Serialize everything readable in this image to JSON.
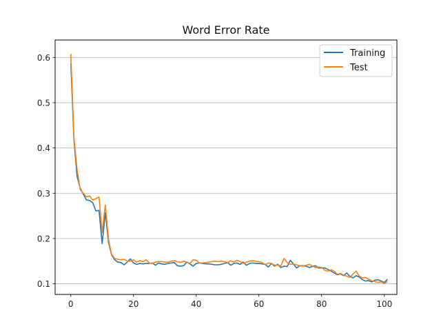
{
  "chart_data": {
    "type": "line",
    "title": "Word Error Rate",
    "xlabel": "",
    "ylabel": "",
    "xlim": [
      -5,
      104
    ],
    "ylim": [
      0.0765,
      0.6385
    ],
    "xticks": [
      0,
      20,
      40,
      60,
      80,
      100
    ],
    "yticks": [
      0.1,
      0.2,
      0.3,
      0.4,
      0.5,
      0.6
    ],
    "grid": {
      "y": true,
      "x": false
    },
    "legend_position": "top-right",
    "series": [
      {
        "name": "Training",
        "color": "#1f77b4",
        "values": [
          0.587,
          0.418,
          0.337,
          0.311,
          0.298,
          0.285,
          0.284,
          0.279,
          0.261,
          0.262,
          0.189,
          0.257,
          0.193,
          0.164,
          0.153,
          0.148,
          0.147,
          0.142,
          0.148,
          0.155,
          0.146,
          0.143,
          0.145,
          0.144,
          0.145,
          0.145,
          0.146,
          0.141,
          0.146,
          0.144,
          0.143,
          0.145,
          0.146,
          0.147,
          0.14,
          0.139,
          0.14,
          0.148,
          0.144,
          0.139,
          0.145,
          0.146,
          0.145,
          0.144,
          0.144,
          0.143,
          0.142,
          0.142,
          0.143,
          0.145,
          0.147,
          0.141,
          0.145,
          0.146,
          0.143,
          0.148,
          0.141,
          0.145,
          0.146,
          0.145,
          0.145,
          0.144,
          0.143,
          0.137,
          0.145,
          0.139,
          0.143,
          0.136,
          0.139,
          0.138,
          0.152,
          0.144,
          0.135,
          0.14,
          0.14,
          0.139,
          0.136,
          0.138,
          0.14,
          0.135,
          0.135,
          0.135,
          0.132,
          0.128,
          0.124,
          0.12,
          0.122,
          0.118,
          0.124,
          0.117,
          0.113,
          0.118,
          0.115,
          0.109,
          0.106,
          0.107,
          0.104,
          0.108,
          0.109,
          0.106,
          0.103,
          0.11
        ],
        "x_start": -1
      },
      {
        "name": "Test",
        "color": "#ff7f0e",
        "values": [
          0.608,
          0.424,
          0.352,
          0.308,
          0.3,
          0.292,
          0.294,
          0.285,
          0.288,
          0.292,
          0.213,
          0.274,
          0.199,
          0.165,
          0.156,
          0.154,
          0.153,
          0.154,
          0.15,
          0.15,
          0.153,
          0.148,
          0.151,
          0.149,
          0.153,
          0.146,
          0.145,
          0.148,
          0.149,
          0.149,
          0.148,
          0.148,
          0.15,
          0.151,
          0.149,
          0.147,
          0.15,
          0.148,
          0.145,
          0.153,
          0.152,
          0.146,
          0.146,
          0.147,
          0.148,
          0.149,
          0.15,
          0.149,
          0.15,
          0.149,
          0.147,
          0.151,
          0.148,
          0.152,
          0.149,
          0.145,
          0.148,
          0.15,
          0.151,
          0.15,
          0.149,
          0.147,
          0.142,
          0.146,
          0.145,
          0.141,
          0.141,
          0.14,
          0.156,
          0.147,
          0.143,
          0.144,
          0.142,
          0.14,
          0.139,
          0.141,
          0.143,
          0.14,
          0.136,
          0.137,
          0.136,
          0.13,
          0.128,
          0.131,
          0.128,
          0.121,
          0.123,
          0.119,
          0.117,
          0.114,
          0.122,
          0.128,
          0.117,
          0.113,
          0.114,
          0.11,
          0.107,
          0.105,
          0.103,
          0.104,
          0.101,
          0.105
        ],
        "x_start": -1
      }
    ]
  }
}
